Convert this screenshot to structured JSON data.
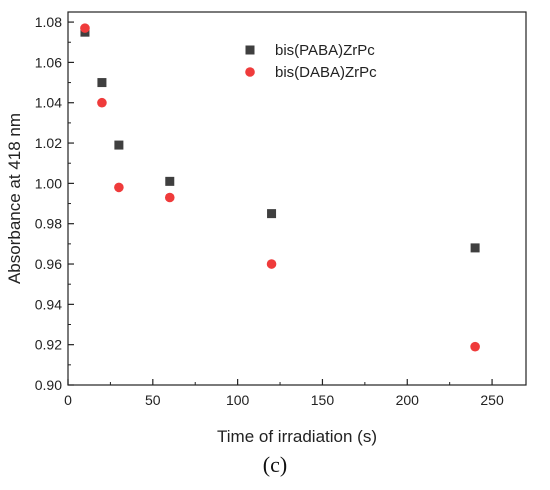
{
  "panel_label": "(c)",
  "chart_data": {
    "type": "scatter",
    "xlabel": "Time of irradiation (s)",
    "ylabel": "Absorbance at 418 nm",
    "xlim": [
      0,
      270
    ],
    "ylim": [
      0.9,
      1.085
    ],
    "xticks": [
      0,
      50,
      100,
      150,
      200,
      250
    ],
    "yticks": [
      0.9,
      0.92,
      0.94,
      0.96,
      0.98,
      1.0,
      1.02,
      1.04,
      1.06,
      1.08
    ],
    "grid": false,
    "legend_position": "top-right",
    "series": [
      {
        "name": "bis(PABA)ZrPc",
        "marker": "square",
        "color": "#3f3f3f",
        "x": [
          10,
          20,
          30,
          60,
          120,
          240
        ],
        "y": [
          1.075,
          1.05,
          1.019,
          1.001,
          0.985,
          0.968
        ]
      },
      {
        "name": "bis(DABA)ZrPc",
        "marker": "circle",
        "color": "#ef3b3b",
        "x": [
          10,
          20,
          30,
          60,
          120,
          240
        ],
        "y": [
          1.077,
          1.04,
          0.998,
          0.993,
          0.96,
          0.919
        ]
      }
    ]
  }
}
